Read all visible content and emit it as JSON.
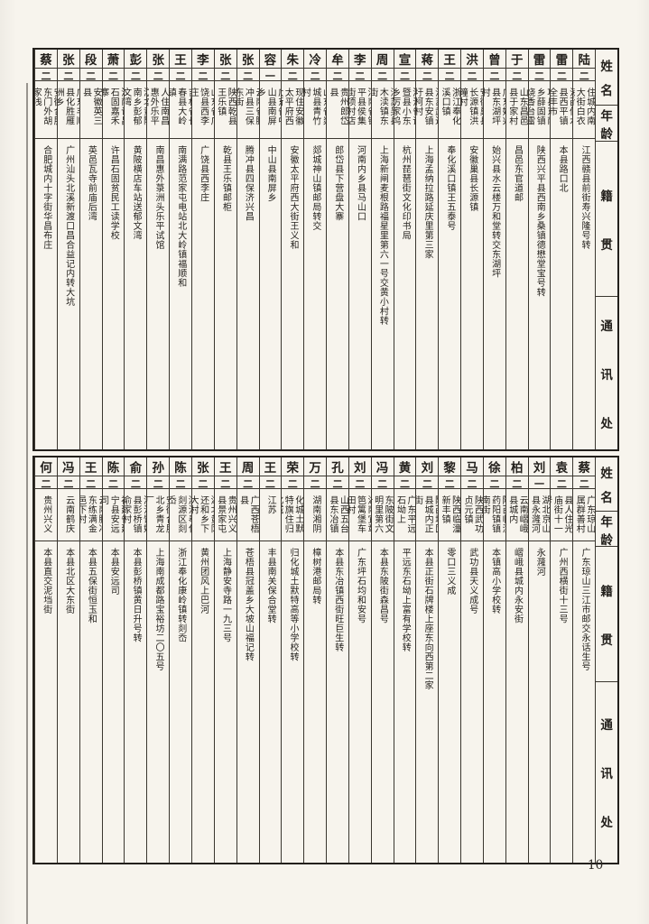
{
  "page": {
    "number": "10"
  },
  "headers": {
    "name": "姓名",
    "age": "年龄",
    "origin": "籍贯",
    "address": "通讯处"
  },
  "tables": [
    {
      "people": [
        {
          "name": "陆杰",
          "age": "二五",
          "origin": "江西赣县住城内南大街白衣庵背",
          "address": "江西赣县前街寿兴隆号转"
        },
        {
          "name": "雷德",
          "age": "二三",
          "origin": "江西修水县西平镇全丰市",
          "address": "本县路口北"
        },
        {
          "name": "雷克明",
          "age": "二二",
          "origin": "陕西省武功县东南乡薛固镇烧香台雷家堡",
          "address": "陕西兴平县西南乡桑镇德懋堂宝号转"
        },
        {
          "name": "于洛东",
          "age": "二一",
          "origin": "山东昌邑县于家村",
          "address": "昌邑东官道邮"
        },
        {
          "name": "曾昭镜",
          "age": "二三",
          "origin": "广东始兴县东湖坪村",
          "address": "始兴县水云楼万和堂转交东湖坪"
        },
        {
          "name": "洪君器",
          "age": "二三",
          "origin": "安徽巢县长源镇洪疃村",
          "address": "安徽巢县长源镇"
        },
        {
          "name": "王世和",
          "age": "二四",
          "origin": "浙江奉化溪口镇",
          "address": "奉化溪口镇王五泰号"
        },
        {
          "name": "蒋超雄",
          "age": "二一",
          "origin": "江苏武进县东安镇圩柯村",
          "address": "上海孟纳拉路延庆里第三家"
        },
        {
          "name": "宣铁吾",
          "age": "二五",
          "origin": "浙江省诸暨县小东乡厉家坞",
          "address": "杭州琵琶街文化印书局"
        },
        {
          "name": "周启邦",
          "age": "二三",
          "origin": "江苏吴县木渎镇东街",
          "address": "上海新闸麦根路福星里第六一号交黄小村转"
        },
        {
          "name": "李正韬",
          "age": "二五",
          "origin": "河南省镇平县侯集街项村店",
          "address": "河南内乡县马山口"
        },
        {
          "name": "牟廷芳",
          "age": "二〇",
          "origin": "贵州郎岱县",
          "address": "郎岱县下营盘大寨"
        },
        {
          "name": "冷相佑",
          "age": "二一",
          "origin": "山东省郯城县青竹村",
          "address": "郯城神山镇邮局转交"
        },
        {
          "name": "朱鹏飞",
          "age": "二五",
          "origin": "甘肃兰州现住安徽太平府西大街",
          "address": "安徽太平府西大街王义和"
        },
        {
          "name": "容有略",
          "age": "一九",
          "origin": "广东省中山县南屏乡",
          "address": "中山县南屏乡"
        },
        {
          "name": "张耀枢",
          "age": "二三",
          "origin": "云南省腾冲县三保东街",
          "address": "腾冲县四保济兴昌"
        },
        {
          "name": "张汝翰",
          "age": "二二",
          "origin": "陕西乾县王乐镇",
          "address": "乾县王乐镇邮柜"
        },
        {
          "name": "李殿春",
          "age": "二三",
          "origin": "山东省广饶县西李庄",
          "address": "广饶县西李庄"
        },
        {
          "name": "王君培",
          "age": "二五",
          "origin": "吉林省长春县大岭镇",
          "address": "南满路范家屯电站北大岭镇福顺和"
        },
        {
          "name": "张达",
          "age": "二五",
          "origin": "江西乐平人住南昌惠外乐平试馆",
          "address": "南昌惠外菉洲头乐平试馆"
        },
        {
          "name": "彭善",
          "age": "二二",
          "origin": "湖北黄陂南乡彭郁文湾",
          "address": "黄陂横店车站送郁文湾"
        },
        {
          "name": "萧洒",
          "age": "二三",
          "origin": "河南许昌石固嘉禾寨",
          "address": "许昌石固贫民工读学校"
        },
        {
          "name": "段重智",
          "age": "二三",
          "origin": "安徽英三县",
          "address": "英邑瓦寺前庙后湾"
        },
        {
          "name": "张慎阶",
          "age": "二二",
          "origin": "广东丰顺县化胜雁洲乡",
          "address": "广州汕头北溪新渡口昌合益记内转大坑"
        },
        {
          "name": "蔡炳炎",
          "age": "二五",
          "origin": "安徽合肥东门外胡家浅",
          "address": "合肥城内十字街华昌布庄"
        }
      ]
    },
    {
      "people": [
        {
          "name": "蔡昆明",
          "age": "二四",
          "origin": "广东琼山属群善村",
          "address": "广东琼山三江市邮交永话生号"
        },
        {
          "name": "袁嘉猷",
          "age": "二〇",
          "origin": "云南顺宁县人住光庙街十一号",
          "address": "广州西横街十三号"
        },
        {
          "name": "刘明夏",
          "age": "一九",
          "origin": "湖北京山县永漋河",
          "address": "永漋河"
        },
        {
          "name": "柏天民",
          "age": "二三",
          "origin": "云南嶍峨县城内",
          "address": "嶍峨县城内永安街"
        },
        {
          "name": "徐经济",
          "age": "二三",
          "origin": "陕西临潼药阳镇镇南街",
          "address": "本镇高小学校转"
        },
        {
          "name": "马维周",
          "age": "二〇",
          "origin": "陕西武功贞元镇",
          "address": "武功县天义成号"
        },
        {
          "name": "黎青云",
          "age": "二六",
          "origin": "陕西临潼新丰镇",
          "address": "零口三义成"
        },
        {
          "name": "刘鸿勋",
          "age": "二三",
          "origin": "陕西城固县城内正街",
          "address": "本县正街石牌楼上座东向西第二家"
        },
        {
          "name": "黄梅兴",
          "age": "二一",
          "origin": "广东平远石坳上",
          "address": "平远东石坳上富有学校转"
        },
        {
          "name": "冯洵",
          "age": "二三",
          "origin": "广东连县东陂街文明里第六号",
          "address": "本县东陂街森昌号"
        },
        {
          "name": "刘云",
          "age": "二四",
          "origin": "湖南宜章笆篱堡车田村",
          "address": "广东坪石均和安号"
        },
        {
          "name": "孔昭林",
          "age": "二四",
          "origin": "山西五台县东冶镇",
          "address": "本县东冶镇西街旺巨生转"
        },
        {
          "name": "万少鼎",
          "age": "二四",
          "origin": "湖南湘阴",
          "address": "樟树港邮局转"
        },
        {
          "name": "荣耀光",
          "age": "二四",
          "origin": "内蒙古归化城土默特旗住归化城",
          "address": "归化城土默特高等小学校转"
        },
        {
          "name": "王敬久",
          "age": "二一",
          "origin": "江苏",
          "address": "丰县南关保合堂转"
        },
        {
          "name": "周泽甫",
          "age": "二四",
          "origin": "广西苍梧县",
          "address": "苍梧县冠盖乡大坡山福记转"
        },
        {
          "name": "王文彦",
          "age": "二二",
          "origin": "贵州兴义县景家屯",
          "address": "上海静安寺路一九三号"
        },
        {
          "name": "张开铨",
          "age": "二二",
          "origin": "湖北黄冈还和乡下大村",
          "address": "黄州团风上巴河"
        },
        {
          "name": "陈图南",
          "age": "二一",
          "origin": "浙江奉化剡源区剡岙",
          "address": "浙江奉化康岭镇转剡岙"
        },
        {
          "name": "孙怀远",
          "age": "二〇",
          "origin": "安徽合肥北乡青龙厂",
          "address": "上海南成都路宝裕坊二〇五号"
        },
        {
          "name": "俞墉",
          "age": "二〇",
          "origin": "浙江馀姚县彭桥镇俞家村",
          "address": "本县彭桥镇黄日升号转"
        },
        {
          "name": "陈纲",
          "age": "二二",
          "origin": "福建省建宁县安远司",
          "address": "本县安远司"
        },
        {
          "name": "王万龄",
          "age": "二四",
          "origin": "云南腾冲东练满金邑下村",
          "address": "本县五保街恒玉和"
        },
        {
          "name": "冯春申",
          "age": "二一",
          "origin": "云南鹤庆",
          "address": "本县北区大东街"
        },
        {
          "name": "何绍周",
          "age": "二一",
          "origin": "贵州兴义",
          "address": "本县直交泥垱街"
        }
      ]
    }
  ]
}
